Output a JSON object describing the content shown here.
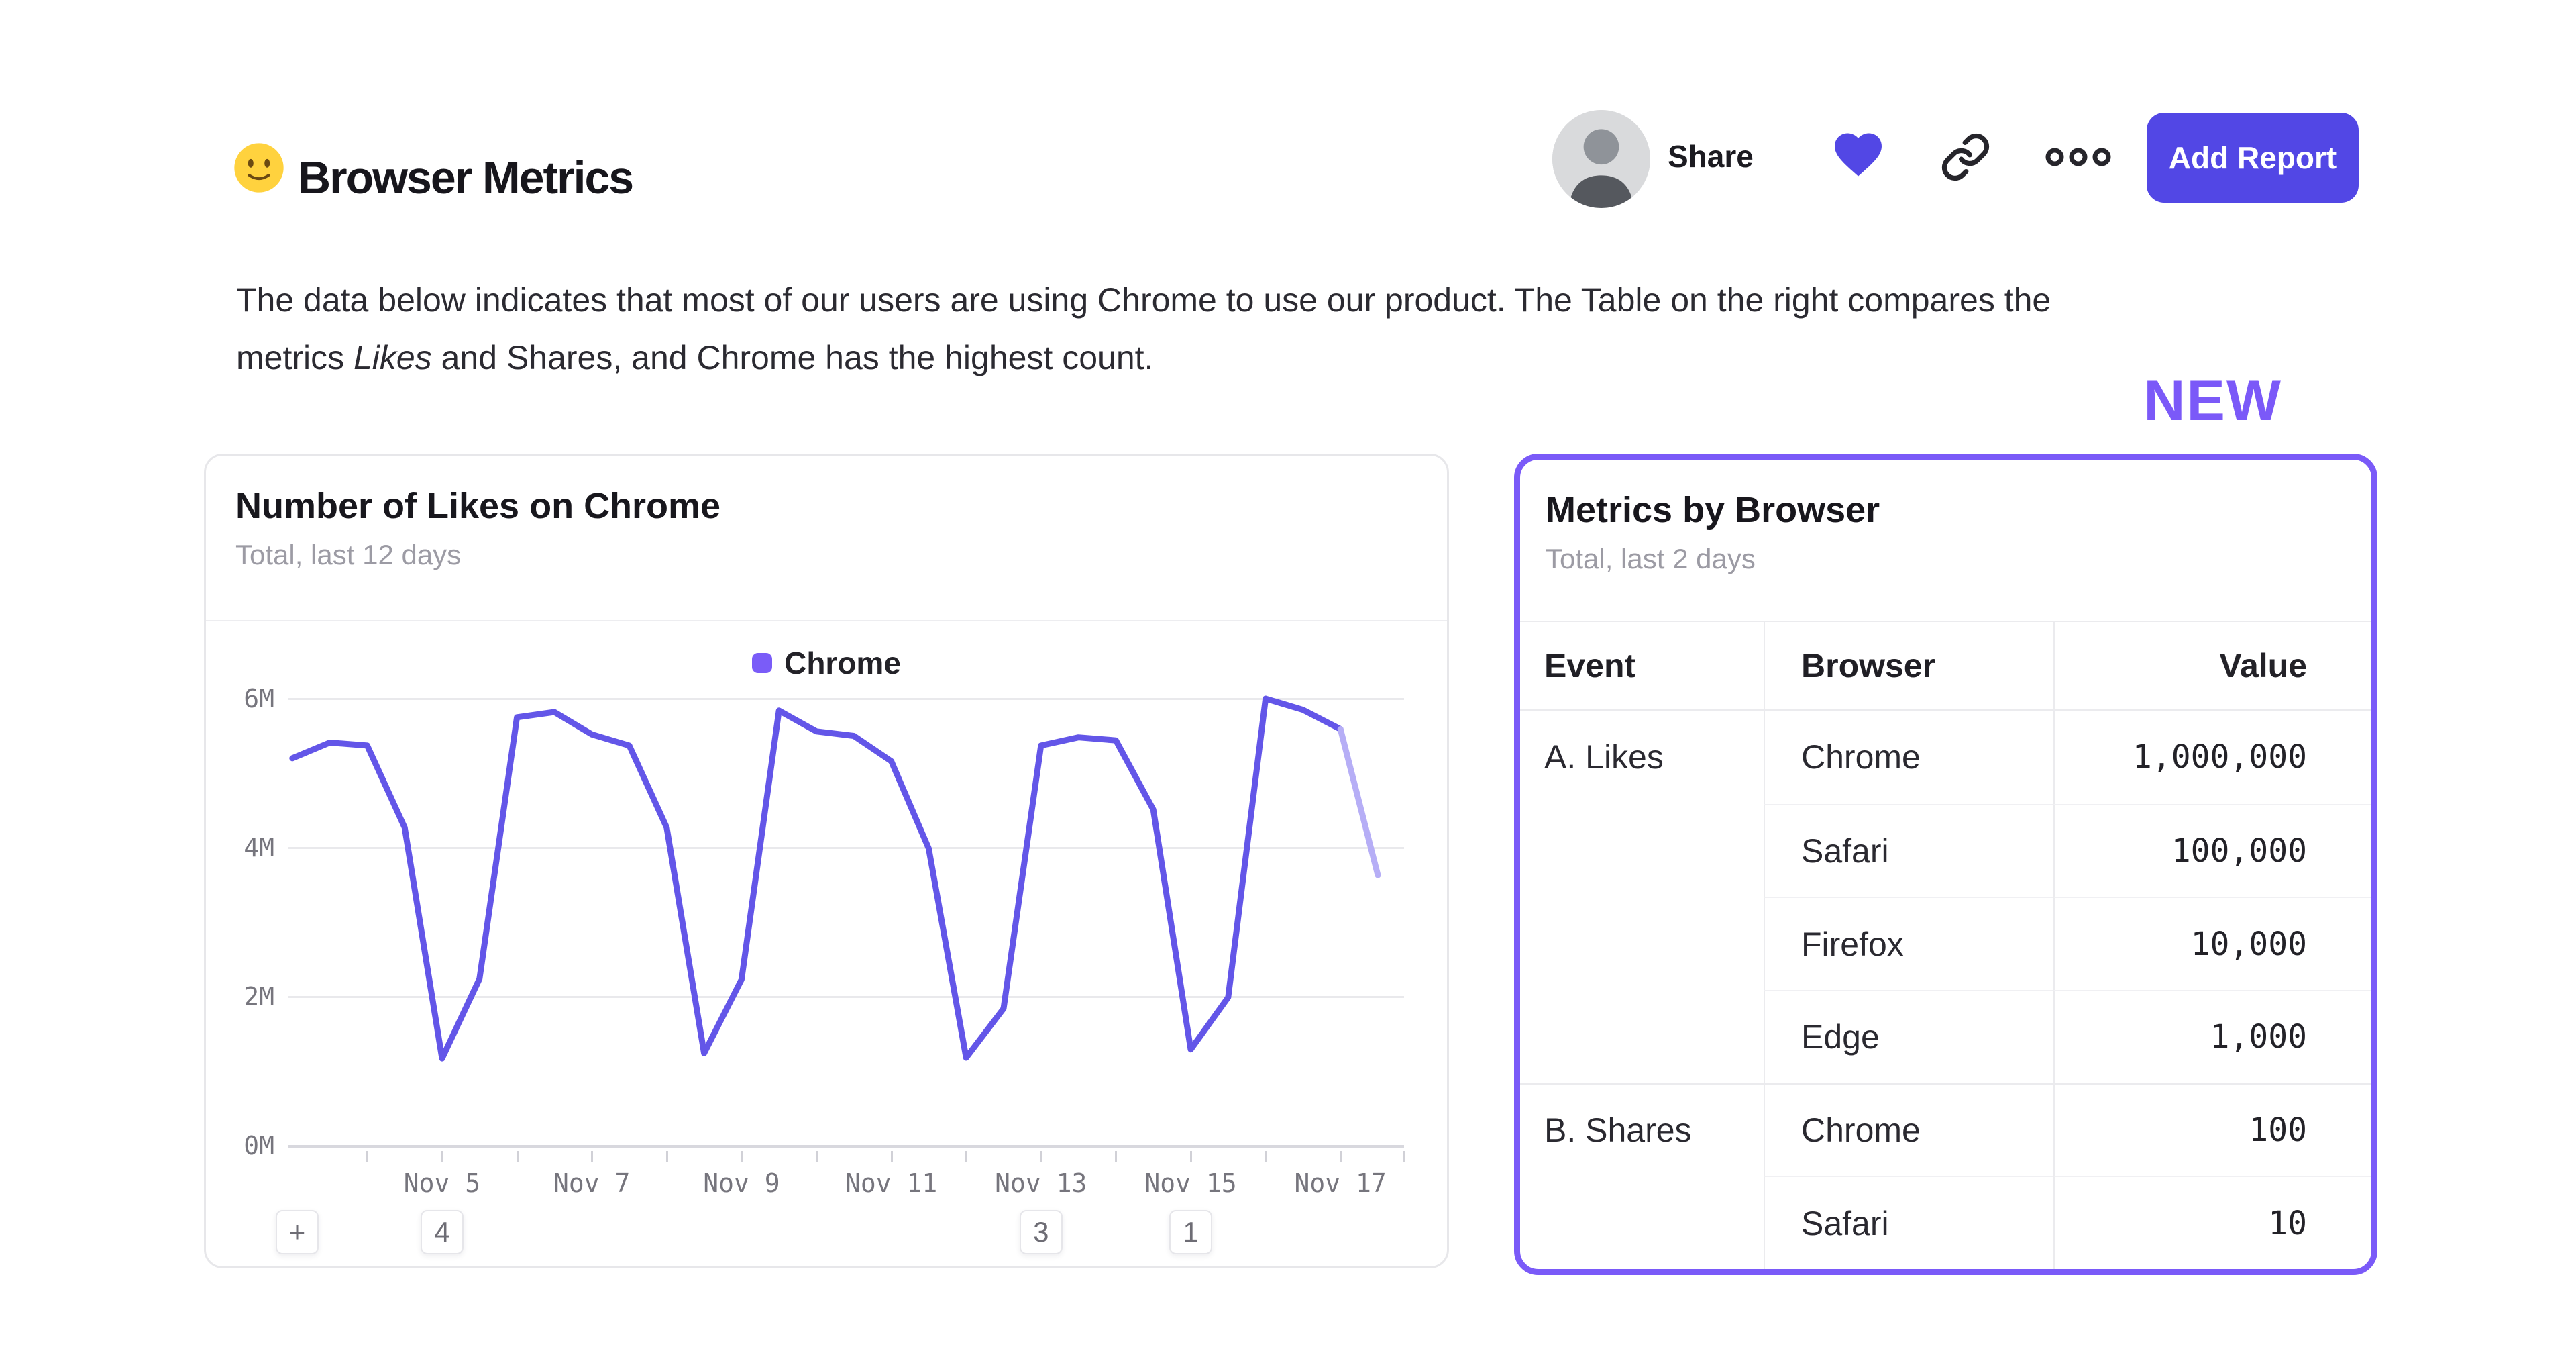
{
  "header": {
    "emoji": "🙂",
    "title": "Browser Metrics",
    "share_label": "Share",
    "add_report_label": "Add Report",
    "icons": [
      "avatar",
      "heart-icon",
      "link-icon",
      "more-icon"
    ]
  },
  "description": {
    "line1": "The data below indicates that most of our users are using Chrome to use our product. The Table on the right compares the",
    "line2_pre": "metrics ",
    "line2_em": "Likes",
    "line2_post": " and Shares, and Chrome has the highest count."
  },
  "new_badge": {
    "label": "NEW"
  },
  "chart_card": {
    "title": "Number of Likes on Chrome",
    "subtitle": "Total, last 12 days",
    "legend": [
      {
        "label": "Chrome",
        "color": "#7a5cf8"
      }
    ],
    "annotations": {
      "add_button": "+",
      "badges": [
        {
          "label": "4",
          "day": 5
        },
        {
          "label": "3",
          "day": 13
        },
        {
          "label": "1",
          "day": 15
        }
      ]
    }
  },
  "chart_data": {
    "type": "line",
    "title": "Number of Likes on Chrome",
    "unit": "millions of likes",
    "x_axis": "Date (November)",
    "xlim": [
      3,
      18
    ],
    "ylim": [
      0,
      6.35
    ],
    "grid": true,
    "legend_position": "top-center",
    "y_ticks": [
      {
        "label": "0M",
        "value": 0
      },
      {
        "label": "2M",
        "value": 2
      },
      {
        "label": "4M",
        "value": 4
      },
      {
        "label": "6M",
        "value": 6
      }
    ],
    "x_ticks": [
      {
        "label": "Nov 5",
        "day": 5
      },
      {
        "label": "Nov 7",
        "day": 7
      },
      {
        "label": "Nov 9",
        "day": 9
      },
      {
        "label": "Nov 11",
        "day": 11
      },
      {
        "label": "Nov 13",
        "day": 13
      },
      {
        "label": "Nov 15",
        "day": 15
      },
      {
        "label": "Nov 17",
        "day": 17
      }
    ],
    "series": [
      {
        "name": "Chrome",
        "color": "#6356e8",
        "faded_color": "#b6aef6",
        "faded_from_x": 17,
        "points": [
          [
            3,
            5.2
          ],
          [
            3.5,
            5.41
          ],
          [
            4,
            5.37
          ],
          [
            4.5,
            4.27
          ],
          [
            5,
            1.17
          ],
          [
            5.5,
            2.24
          ],
          [
            6,
            5.75
          ],
          [
            6.5,
            5.82
          ],
          [
            7,
            5.52
          ],
          [
            7.5,
            5.37
          ],
          [
            8,
            4.27
          ],
          [
            8.5,
            1.24
          ],
          [
            9,
            2.23
          ],
          [
            9.5,
            5.84
          ],
          [
            10,
            5.56
          ],
          [
            10.5,
            5.5
          ],
          [
            11,
            5.16
          ],
          [
            11.5,
            3.99
          ],
          [
            12,
            1.18
          ],
          [
            12.5,
            1.84
          ],
          [
            13,
            5.37
          ],
          [
            13.5,
            5.48
          ],
          [
            14,
            5.44
          ],
          [
            14.5,
            4.51
          ],
          [
            15,
            1.29
          ],
          [
            15.5,
            1.99
          ],
          [
            16,
            6.0
          ],
          [
            16.5,
            5.85
          ],
          [
            17,
            5.59
          ],
          [
            17.5,
            3.63
          ]
        ]
      }
    ]
  },
  "table_card": {
    "title": "Metrics by Browser",
    "subtitle": "Total, last 2 days",
    "columns": [
      "Event",
      "Browser",
      "Value"
    ],
    "groups": [
      {
        "event": "A. Likes",
        "rows": [
          {
            "browser": "Chrome",
            "value": "1,000,000"
          },
          {
            "browser": "Safari",
            "value": "100,000"
          },
          {
            "browser": "Firefox",
            "value": "10,000"
          },
          {
            "browser": "Edge",
            "value": "1,000"
          }
        ]
      },
      {
        "event": "B. Shares",
        "rows": [
          {
            "browser": "Chrome",
            "value": "100"
          },
          {
            "browser": "Safari",
            "value": "10"
          }
        ]
      }
    ]
  },
  "colors": {
    "accent_indigo": "#5247e5",
    "accent_purple": "#7a5af8",
    "line": "#6356e8",
    "line_faded": "#b6aef6",
    "grid": "#e9e9ec",
    "text_dark": "#1c1b21",
    "text_gray": "#9c9ba4"
  }
}
